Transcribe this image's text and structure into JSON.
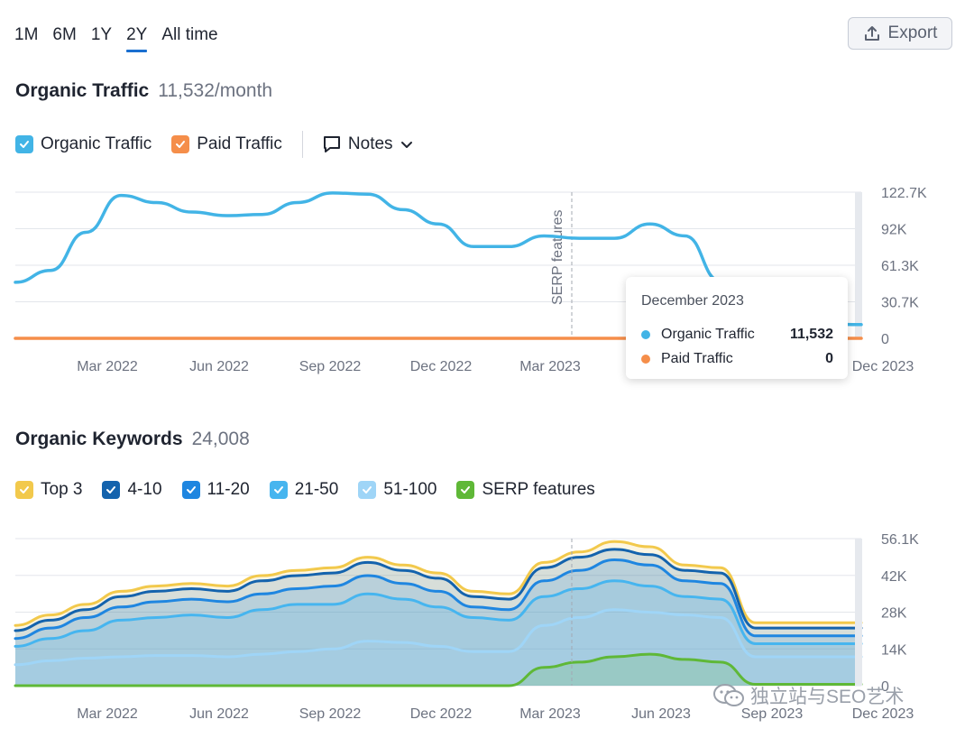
{
  "range_tabs": [
    "1M",
    "6M",
    "1Y",
    "2Y",
    "All time"
  ],
  "active_range": "2Y",
  "export_label": "Export",
  "traffic": {
    "title": "Organic Traffic",
    "value": "11,532/month",
    "legend": [
      {
        "label": "Organic Traffic",
        "color": "#42b4e6"
      },
      {
        "label": "Paid Traffic",
        "color": "#f58e4a"
      }
    ],
    "notes_label": "Notes"
  },
  "tooltip": {
    "date": "December 2023",
    "rows": [
      {
        "label": "Organic Traffic",
        "value": "11,532",
        "color": "#42b4e6"
      },
      {
        "label": "Paid Traffic",
        "value": "0",
        "color": "#f58e4a"
      }
    ]
  },
  "keywords": {
    "title": "Organic Keywords",
    "value": "24,008",
    "legend": [
      {
        "label": "Top 3",
        "color": "#f2c94c"
      },
      {
        "label": "4-10",
        "color": "#1463ad"
      },
      {
        "label": "11-20",
        "color": "#1f86e0"
      },
      {
        "label": "21-50",
        "color": "#46b5ef"
      },
      {
        "label": "51-100",
        "color": "#9fd5f7"
      },
      {
        "label": "SERP features",
        "color": "#5fb837"
      }
    ]
  },
  "watermark": "独立站与SEO艺术",
  "chart_data": [
    {
      "type": "line",
      "title": "Organic Traffic",
      "x_ticks": [
        "Mar 2022",
        "Jun 2022",
        "Sep 2022",
        "Dec 2022",
        "Mar 2023",
        "Jun 2023",
        "Sep 2023",
        "Dec 2023"
      ],
      "y_ticks": [
        "122.7K",
        "92K",
        "61.3K",
        "30.7K",
        "0"
      ],
      "ylim": [
        0,
        122700
      ],
      "annotation": "SERP features",
      "x": [
        "Dec 2021",
        "Jan 2022",
        "Feb 2022",
        "Mar 2022",
        "Apr 2022",
        "May 2022",
        "Jun 2022",
        "Jul 2022",
        "Aug 2022",
        "Sep 2022",
        "Oct 2022",
        "Nov 2022",
        "Dec 2022",
        "Jan 2023",
        "Feb 2023",
        "Mar 2023",
        "Apr 2023",
        "May 2023",
        "Jun 2023",
        "Jul 2023",
        "Aug 2023",
        "Sep 2023",
        "Oct 2023",
        "Nov 2023",
        "Dec 2023"
      ],
      "series": [
        {
          "name": "Organic Traffic",
          "color": "#42b4e6",
          "values": [
            47000,
            57000,
            89000,
            120000,
            114000,
            106000,
            103000,
            104000,
            114000,
            122000,
            121000,
            108000,
            96000,
            77000,
            77000,
            86000,
            84000,
            84000,
            96000,
            86000,
            48000,
            15000,
            12000,
            12000,
            11532
          ]
        },
        {
          "name": "Paid Traffic",
          "color": "#f58e4a",
          "values": [
            0,
            0,
            0,
            0,
            0,
            0,
            0,
            0,
            0,
            0,
            0,
            0,
            0,
            0,
            0,
            0,
            0,
            0,
            0,
            0,
            0,
            0,
            0,
            0,
            0
          ]
        }
      ]
    },
    {
      "type": "area",
      "title": "Organic Keywords",
      "x_ticks": [
        "Mar 2022",
        "Jun 2022",
        "Sep 2022",
        "Dec 2022",
        "Mar 2023",
        "Jun 2023",
        "Sep 2023",
        "Dec 2023"
      ],
      "y_ticks": [
        "56.1K",
        "42K",
        "28K",
        "14K",
        "0"
      ],
      "ylim": [
        0,
        56100
      ],
      "x": [
        "Dec 2021",
        "Jan 2022",
        "Feb 2022",
        "Mar 2022",
        "Apr 2022",
        "May 2022",
        "Jun 2022",
        "Jul 2022",
        "Aug 2022",
        "Sep 2022",
        "Oct 2022",
        "Nov 2022",
        "Dec 2022",
        "Jan 2023",
        "Feb 2023",
        "Mar 2023",
        "Apr 2023",
        "May 2023",
        "Jun 2023",
        "Jul 2023",
        "Aug 2023",
        "Sep 2023",
        "Oct 2023",
        "Nov 2023",
        "Dec 2023"
      ],
      "series": [
        {
          "name": "Top 3",
          "color": "#f2c94c",
          "values": [
            23000,
            27000,
            31000,
            36000,
            38000,
            39000,
            38000,
            42000,
            44000,
            45000,
            49000,
            46000,
            43000,
            36000,
            35000,
            47000,
            51000,
            55000,
            53000,
            46000,
            45000,
            24000,
            24000,
            24000,
            24008
          ]
        },
        {
          "name": "4-10",
          "color": "#1463ad",
          "values": [
            21000,
            25000,
            29000,
            34000,
            36000,
            37000,
            36000,
            40000,
            42000,
            43000,
            47000,
            44000,
            41000,
            34000,
            33000,
            45000,
            49000,
            52000,
            50000,
            44000,
            43000,
            22000,
            22000,
            22000,
            22000
          ]
        },
        {
          "name": "11-20",
          "color": "#1f86e0",
          "values": [
            18000,
            22000,
            26000,
            30000,
            32000,
            33000,
            32000,
            35000,
            37000,
            38000,
            42000,
            39000,
            36000,
            30000,
            29000,
            40000,
            44000,
            48000,
            46000,
            40000,
            39000,
            19000,
            19000,
            19000,
            19000
          ]
        },
        {
          "name": "21-50",
          "color": "#46b5ef",
          "values": [
            15000,
            18000,
            21000,
            25000,
            26000,
            27000,
            26000,
            29000,
            31000,
            31000,
            35000,
            33000,
            30000,
            26000,
            25000,
            34000,
            37000,
            40000,
            38000,
            34000,
            33000,
            16000,
            16000,
            16000,
            16000
          ]
        },
        {
          "name": "51-100",
          "color": "#9fd5f7",
          "values": [
            8000,
            9500,
            10500,
            11000,
            11500,
            11500,
            11000,
            12000,
            13000,
            14000,
            17000,
            16500,
            15000,
            13000,
            13000,
            23000,
            26000,
            29000,
            28000,
            27000,
            26000,
            11000,
            11000,
            11000,
            11000
          ]
        },
        {
          "name": "SERP features",
          "color": "#5fb837",
          "values": [
            0,
            0,
            0,
            0,
            0,
            0,
            0,
            0,
            0,
            0,
            0,
            0,
            0,
            0,
            0,
            7000,
            9000,
            11000,
            12000,
            10000,
            9000,
            500,
            500,
            500,
            500
          ]
        }
      ]
    }
  ]
}
